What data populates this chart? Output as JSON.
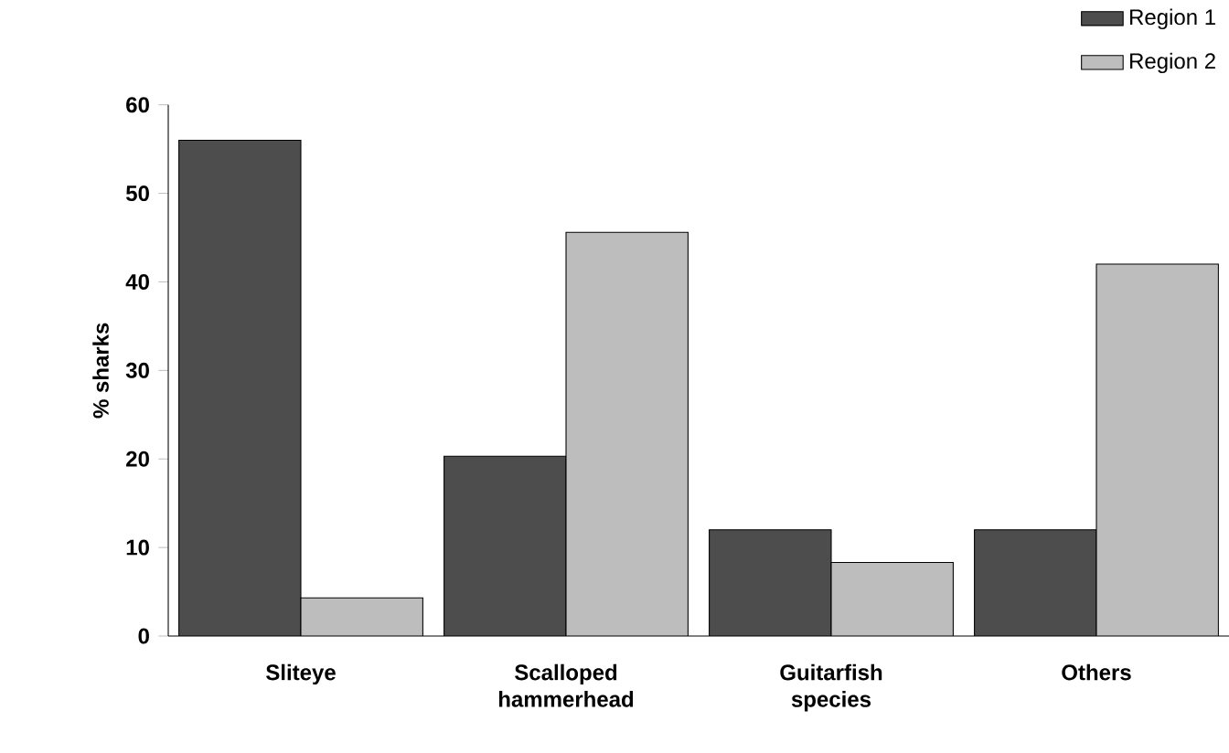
{
  "chart_data": {
    "type": "bar",
    "ylabel": "% sharks",
    "categories": [
      "Sliteye",
      "Scalloped hammerhead",
      "Guitarfish species",
      "Others"
    ],
    "series": [
      {
        "name": "Region 1",
        "color": "#4d4d4d",
        "values": [
          56,
          20.3,
          12,
          12
        ]
      },
      {
        "name": "Region 2",
        "color": "#bdbdbd",
        "values": [
          4.3,
          45.6,
          8.3,
          42
        ]
      }
    ],
    "ylim": [
      0,
      60
    ],
    "yticks": [
      0,
      10,
      20,
      30,
      40,
      50,
      60
    ],
    "grid": false,
    "legend": "top right"
  }
}
